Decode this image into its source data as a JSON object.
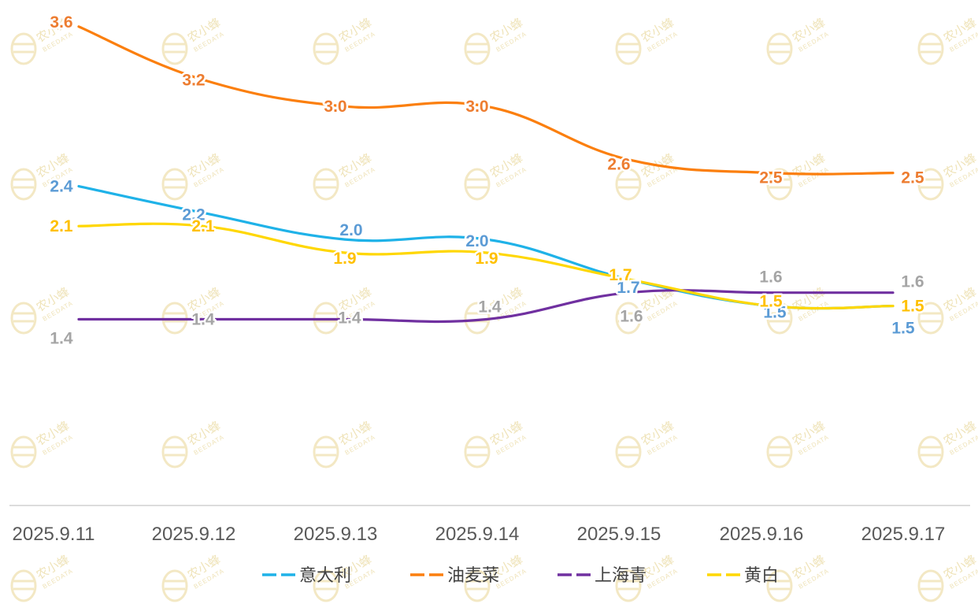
{
  "watermark": {
    "text": "农小蜂",
    "sub": "BEEDATA"
  },
  "chart_data": {
    "type": "line",
    "categories": [
      "2025.9.11",
      "2025.9.12",
      "2025.9.13",
      "2025.9.14",
      "2025.9.15",
      "2025.9.16",
      "2025.9.17"
    ],
    "ylim": [
      0,
      3.8
    ],
    "grid": false,
    "legend_position": "bottom",
    "series": [
      {
        "name": "意大利",
        "color": "#1fb2e8",
        "label_color": "#5b9bd5",
        "values": [
          2.4,
          2.2,
          2.0,
          2.0,
          1.7,
          1.5,
          1.5
        ],
        "labels": [
          "2.4",
          "2.2",
          "2.0",
          "2.0",
          "1.7",
          "1.5",
          "1.5"
        ]
      },
      {
        "name": "油麦菜",
        "color": "#fb7f0e",
        "label_color": "#ed7d31",
        "values": [
          3.6,
          3.2,
          3.0,
          3.0,
          2.6,
          2.5,
          2.5
        ],
        "labels": [
          "3.6",
          "3.2",
          "3.0",
          "3.0",
          "2.6",
          "2.5",
          "2.5"
        ]
      },
      {
        "name": "上海青",
        "color": "#7030a0",
        "label_color": "#a5a5a5",
        "values": [
          1.4,
          1.4,
          1.4,
          1.4,
          1.6,
          1.6,
          1.6
        ],
        "labels": [
          "1.4",
          "1.4",
          "1.4",
          "1.4",
          "1.6",
          "1.6",
          "1.6"
        ]
      },
      {
        "name": "黄白",
        "color": "#ffd700",
        "label_color": "#ffc000",
        "values": [
          2.1,
          2.1,
          1.9,
          1.9,
          1.7,
          1.5,
          1.5
        ],
        "labels": [
          "2.1",
          "2.1",
          "1.9",
          "1.9",
          "1.7",
          "1.5",
          "1.5"
        ]
      }
    ]
  }
}
